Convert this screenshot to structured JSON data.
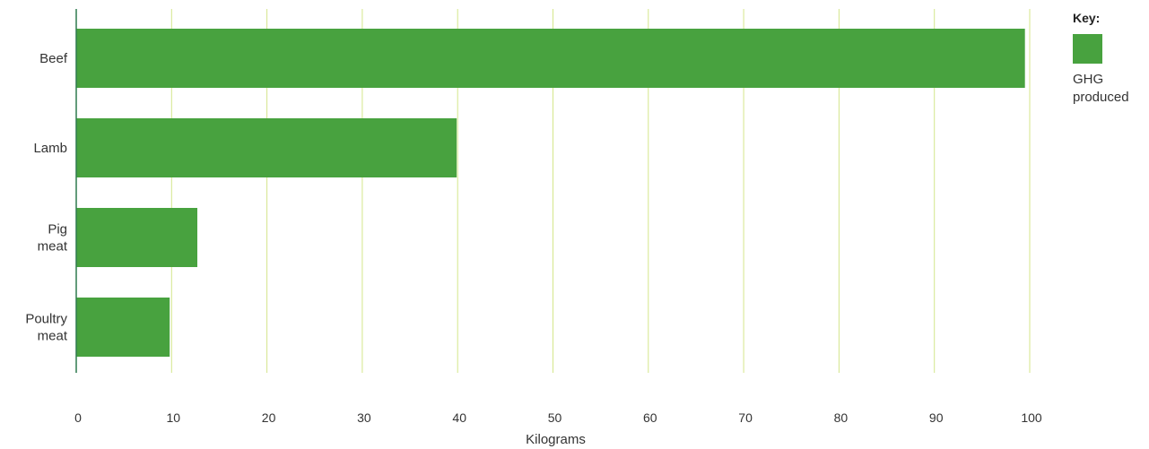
{
  "chart_data": {
    "type": "bar",
    "orientation": "horizontal",
    "categories": [
      "Beef",
      "Lamb",
      "Pig meat",
      "Poultry meat"
    ],
    "category_lines": [
      [
        "Beef"
      ],
      [
        "Lamb"
      ],
      [
        "Pig",
        "meat"
      ],
      [
        "Poultry",
        "meat"
      ]
    ],
    "values": [
      99.5,
      39.9,
      12.7,
      9.8
    ],
    "xlabel": "Kilograms",
    "ylabel": "",
    "xlim": [
      0,
      100
    ],
    "xticks": [
      0,
      10,
      20,
      30,
      40,
      50,
      60,
      70,
      80,
      90,
      100
    ],
    "grid": true,
    "legend_position": "top-right",
    "legend": {
      "title": "Key:",
      "entries": [
        {
          "label": "GHG produced",
          "label_lines": [
            "GHG",
            "produced"
          ]
        }
      ]
    },
    "colors": {
      "bar": "#48a23f",
      "grid": "#d4e68a",
      "axis": "#2f7a4f"
    }
  }
}
